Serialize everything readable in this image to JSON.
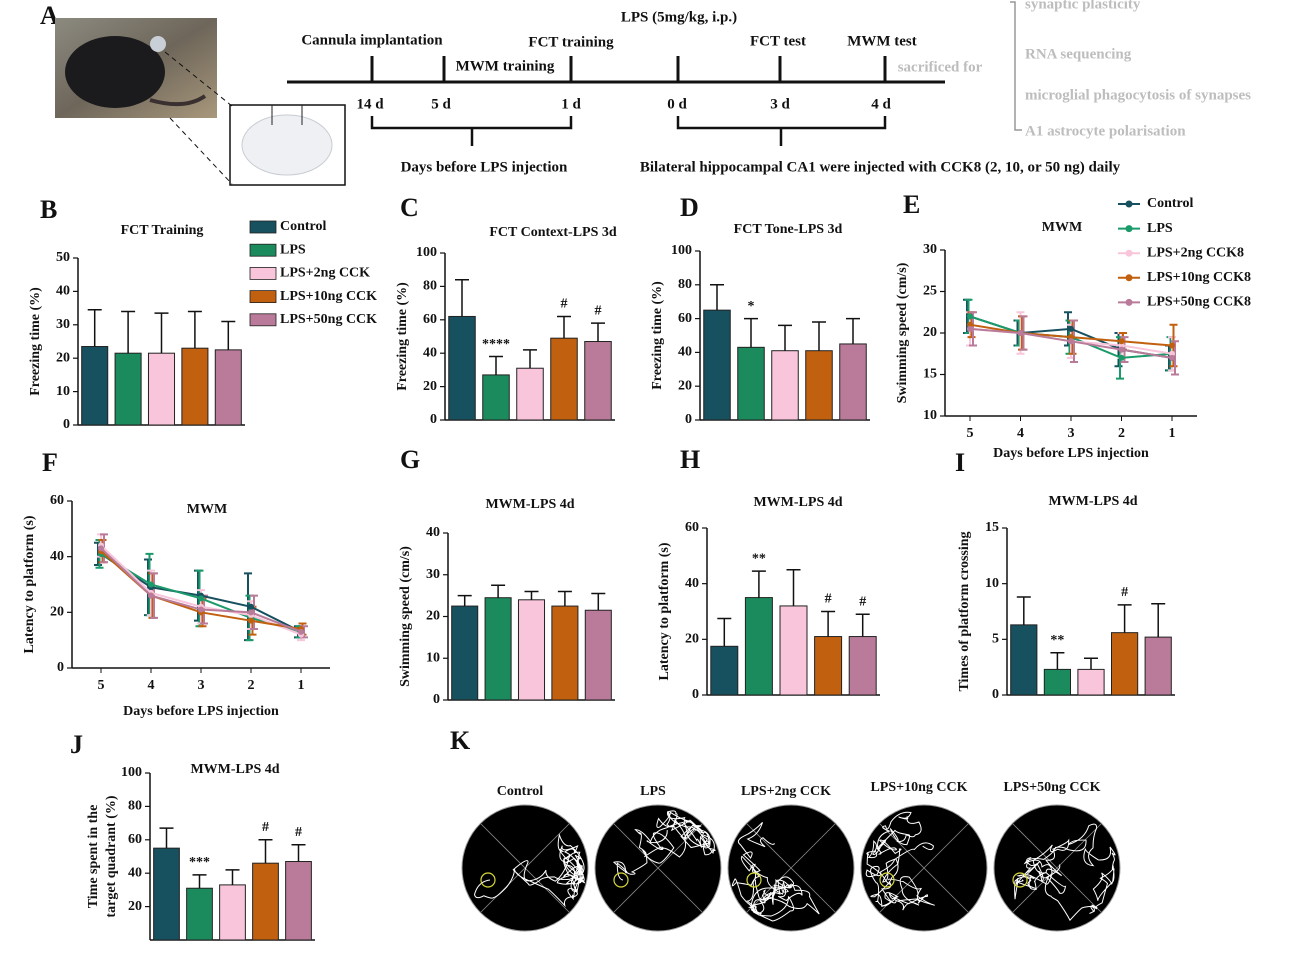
{
  "panel_a": {
    "panel": "A"
  },
  "timeline": {
    "events": [
      "Cannula implantation",
      "MWM training",
      "FCT training",
      "LPS (5mg/kg, i.p.)",
      "FCT test",
      "MWM test"
    ],
    "days": [
      "14 d",
      "5 d",
      "1 d",
      "0 d",
      "3 d",
      "4 d"
    ],
    "sacrificed": "sacrificed for",
    "outcomes": [
      "synaptic plasticity",
      "RNA sequencing",
      "microglial phagocytosis of synapses",
      "A1 astrocyte polarisation"
    ],
    "bracket_left": "Days before LPS injection",
    "bracket_right": "Bilateral hippocampal CA1 were injected  with CCK8 (2, 10, or 50 ng) daily"
  },
  "chart_data": [
    {
      "type": "bar",
      "panel": "B",
      "title": "FCT Training",
      "ylabel": "Freezing time (%)",
      "categories": [
        null,
        null,
        null,
        null,
        null
      ],
      "colors": [
        "#17505f",
        "#1b8a5c",
        "#f8c5da",
        "#c1600f",
        "#b97b99"
      ],
      "values": [
        23.5,
        21.5,
        21.5,
        23,
        22.5
      ],
      "errors": [
        11,
        12.5,
        12,
        11,
        8.5
      ],
      "ylim": [
        0,
        50
      ],
      "yticks": [
        0,
        10,
        20,
        30,
        40,
        50
      ],
      "legend": [
        "Control",
        "LPS",
        "LPS+2ng CCK",
        "LPS+10ng CCK",
        "LPS+50ng CCK"
      ]
    },
    {
      "type": "bar",
      "panel": "C",
      "title": "FCT Context-LPS 3d",
      "ylabel": "Freezing time (%)",
      "categories": [
        null,
        null,
        null,
        null,
        null
      ],
      "colors": [
        "#17505f",
        "#1b8a5c",
        "#f8c5da",
        "#c1600f",
        "#b97b99"
      ],
      "values": [
        62,
        27,
        31,
        49,
        47
      ],
      "errors": [
        22,
        11,
        11,
        13,
        11
      ],
      "annotations": [
        null,
        "****",
        null,
        "#",
        "#"
      ],
      "ylim": [
        0,
        100
      ],
      "yticks": [
        0,
        20,
        40,
        60,
        80,
        100
      ]
    },
    {
      "type": "bar",
      "panel": "D",
      "title": "FCT Tone-LPS 3d",
      "ylabel": "Freezing time (%)",
      "categories": [
        null,
        null,
        null,
        null,
        null
      ],
      "colors": [
        "#17505f",
        "#1b8a5c",
        "#f8c5da",
        "#c1600f",
        "#b97b99"
      ],
      "values": [
        65,
        43,
        41,
        41,
        45
      ],
      "errors": [
        15,
        17,
        15,
        17,
        15
      ],
      "annotations": [
        null,
        "*",
        null,
        null,
        null
      ],
      "ylim": [
        0,
        100
      ],
      "yticks": [
        0,
        20,
        40,
        60,
        80,
        100
      ]
    },
    {
      "type": "line",
      "panel": "E",
      "title": "MWM",
      "ylabel": "Swimming speed (cm/s)",
      "xlabel": "Days before LPS injection",
      "categories": [
        "5",
        "4",
        "3",
        "2",
        "1"
      ],
      "series": [
        {
          "name": "Control",
          "color": "#17505f",
          "values": [
            22,
            20,
            20.5,
            18,
            17
          ],
          "errors": [
            2,
            1.5,
            2,
            2,
            1.5
          ]
        },
        {
          "name": "LPS",
          "color": "#1b9a6a",
          "values": [
            22,
            20,
            19.5,
            17,
            17.5
          ],
          "errors": [
            2,
            1.5,
            2,
            2.5,
            2
          ]
        },
        {
          "name": "LPS+2ng CCK8",
          "color": "#f8c5da",
          "values": [
            20.5,
            20,
            19,
            18.5,
            17.5
          ],
          "errors": [
            2,
            2.5,
            2,
            1.5,
            2
          ]
        },
        {
          "name": "LPS+10ng CCK8",
          "color": "#c1600f",
          "values": [
            21,
            20,
            19.5,
            19,
            18.5
          ],
          "errors": [
            1.5,
            2,
            2,
            1,
            2.5
          ]
        },
        {
          "name": "LPS+50ng CCK8",
          "color": "#b97b99",
          "values": [
            20.5,
            20,
            19,
            18,
            17
          ],
          "errors": [
            2,
            2,
            2.5,
            1.5,
            2
          ]
        }
      ],
      "ylim": [
        10,
        30
      ],
      "yticks": [
        10,
        15,
        20,
        25,
        30
      ],
      "legend": true
    },
    {
      "type": "line",
      "panel": "F",
      "title": "MWM",
      "ylabel": "Latency to platform (s)",
      "xlabel": "Days before LPS injection",
      "categories": [
        "5",
        "4",
        "3",
        "2",
        "1"
      ],
      "series": [
        {
          "color": "#17505f",
          "values": [
            41,
            29,
            26,
            22,
            13
          ],
          "errors": [
            4,
            10,
            9,
            12,
            2
          ]
        },
        {
          "color": "#1b9a6a",
          "values": [
            41,
            30,
            25,
            18,
            13
          ],
          "errors": [
            5,
            11,
            10,
            8,
            2
          ]
        },
        {
          "color": "#f8c5da",
          "values": [
            44,
            27,
            22,
            19,
            12
          ],
          "errors": [
            4,
            8,
            6,
            5,
            2
          ]
        },
        {
          "color": "#c1600f",
          "values": [
            42,
            26,
            20,
            17,
            14
          ],
          "errors": [
            4,
            8,
            5,
            5,
            2
          ]
        },
        {
          "color": "#b97b99",
          "values": [
            43,
            26,
            21,
            20,
            13
          ],
          "errors": [
            5,
            8,
            5,
            6,
            2
          ]
        }
      ],
      "ylim": [
        0,
        60
      ],
      "yticks": [
        0,
        20,
        40,
        60
      ]
    },
    {
      "type": "bar",
      "panel": "G",
      "title": "MWM-LPS 4d",
      "ylabel": "Swimming speed (cm/s)",
      "categories": [
        null,
        null,
        null,
        null,
        null
      ],
      "colors": [
        "#17505f",
        "#1b8a5c",
        "#f8c5da",
        "#c1600f",
        "#b97b99"
      ],
      "values": [
        22.5,
        24.5,
        24,
        22.5,
        21.5
      ],
      "errors": [
        2.5,
        3,
        2,
        3.5,
        4
      ],
      "ylim": [
        0,
        40
      ],
      "yticks": [
        0,
        10,
        20,
        30,
        40
      ]
    },
    {
      "type": "bar",
      "panel": "H",
      "title": "MWM-LPS 4d",
      "ylabel": "Latency to platform (s)",
      "categories": [
        null,
        null,
        null,
        null,
        null
      ],
      "colors": [
        "#17505f",
        "#1b8a5c",
        "#f8c5da",
        "#c1600f",
        "#b97b99"
      ],
      "values": [
        17.5,
        35,
        32,
        21,
        21
      ],
      "errors": [
        10,
        9.5,
        13,
        9,
        8
      ],
      "annotations": [
        null,
        "**",
        null,
        "#",
        "#"
      ],
      "ylim": [
        0,
        60
      ],
      "yticks": [
        0,
        20,
        40,
        60
      ]
    },
    {
      "type": "bar",
      "panel": "I",
      "title": "MWM-LPS 4d",
      "ylabel": "Times of platform crossing",
      "categories": [
        null,
        null,
        null,
        null,
        null
      ],
      "colors": [
        "#17505f",
        "#1b8a5c",
        "#f8c5da",
        "#c1600f",
        "#b97b99"
      ],
      "values": [
        6.3,
        2.3,
        2.3,
        5.6,
        5.2
      ],
      "errors": [
        2.5,
        1.5,
        1,
        2.5,
        3
      ],
      "annotations": [
        null,
        "**",
        null,
        "#",
        null
      ],
      "ylim": [
        0,
        15
      ],
      "yticks": [
        0,
        5,
        10,
        15
      ]
    },
    {
      "type": "bar",
      "panel": "J",
      "title": "MWM-LPS 4d",
      "ylabel": [
        "Time spent in the",
        "target quadrant (%)"
      ],
      "categories": [
        null,
        null,
        null,
        null,
        null
      ],
      "colors": [
        "#17505f",
        "#1b8a5c",
        "#f8c5da",
        "#c1600f",
        "#b97b99"
      ],
      "values": [
        55,
        31,
        33,
        46,
        47
      ],
      "errors": [
        12,
        8,
        9,
        14,
        10
      ],
      "annotations": [
        null,
        "***",
        null,
        "#",
        "#"
      ],
      "ylim": [
        0,
        100
      ],
      "yticks": [
        20,
        40,
        60,
        80,
        100
      ]
    }
  ],
  "panel_k": {
    "panel": "K",
    "labels": [
      "Control",
      "LPS",
      "LPS+2ng CCK",
      "LPS+10ng CCK",
      "LPS+50ng CCK"
    ]
  }
}
